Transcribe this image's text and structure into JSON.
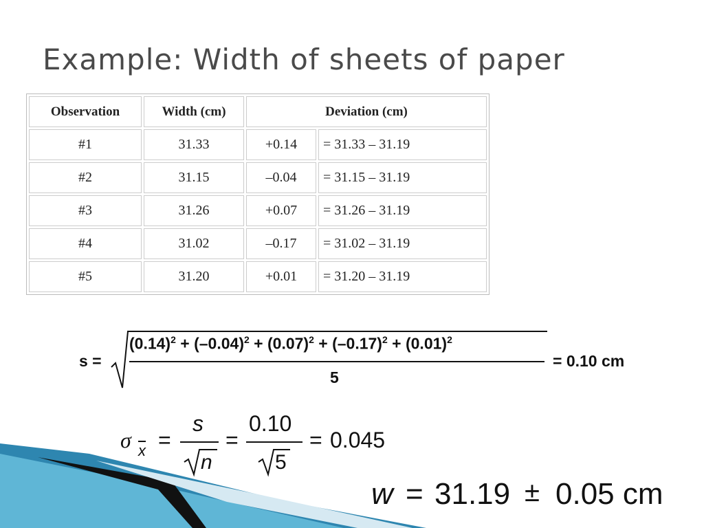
{
  "title": "Example: Width of sheets of paper",
  "table": {
    "header": [
      "Observation",
      "Width (cm)",
      "Deviation (cm)"
    ],
    "rows": [
      [
        "#1",
        "31.33",
        "+0.14",
        "= 31.33 – 31.19"
      ],
      [
        "#2",
        "31.15",
        "–0.04",
        "= 31.15 – 31.19"
      ],
      [
        "#3",
        "31.26",
        "+0.07",
        "= 31.26 – 31.19"
      ],
      [
        "#4",
        "31.02",
        "–0.17",
        "= 31.02 – 31.19"
      ],
      [
        "#5",
        "31.20",
        "+0.01",
        "= 31.20 – 31.19"
      ]
    ]
  },
  "formula_s": {
    "lhs": "s =",
    "terms": [
      {
        "base": "(0.14)",
        "exp": "2"
      },
      {
        "base": " + (–0.04)",
        "exp": "2"
      },
      {
        "base": " + (0.07)",
        "exp": "2"
      },
      {
        "base": " + (–0.17)",
        "exp": "2"
      },
      {
        "base": " + (0.01)",
        "exp": "2"
      }
    ],
    "denominator": "5",
    "result": "= 0.10 cm"
  },
  "formula_sigma": {
    "symbol": "σ",
    "subscript": "x",
    "eq": "=",
    "num1": "s",
    "den1": "n",
    "num2": "0.10",
    "den2": "5",
    "result": "0.045"
  },
  "formula_w": {
    "symbol": "w",
    "eq": "=",
    "value": "31.19",
    "pm": "±",
    "error": "0.05 cm"
  }
}
